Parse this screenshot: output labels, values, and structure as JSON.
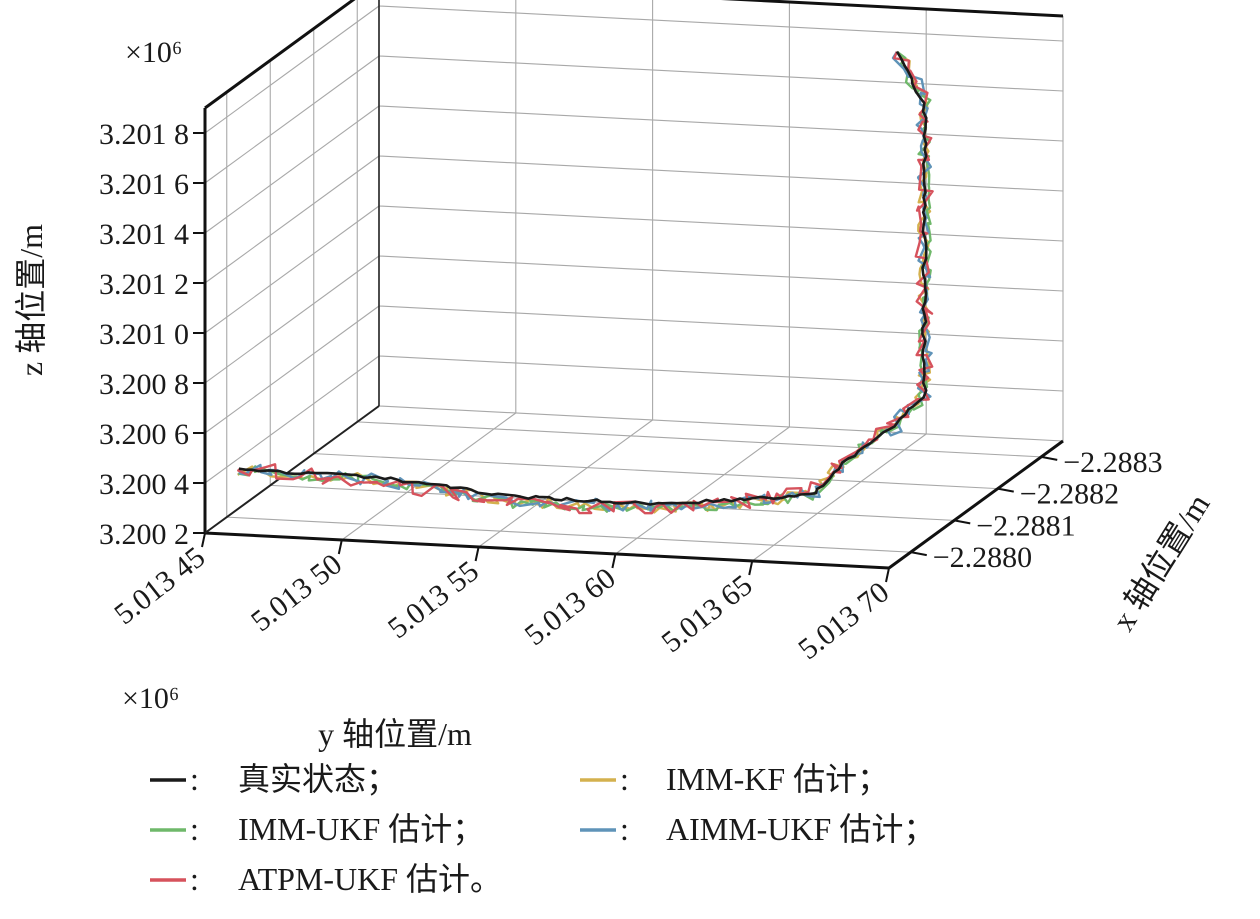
{
  "chart_data": {
    "type": "line",
    "projection": "3d",
    "title": "",
    "xlabel": "x 轴位置/m",
    "ylabel": "y 轴位置/m",
    "zlabel": "z 轴位置/m",
    "x_axis": {
      "multiplier": "",
      "ticks": [
        -2.288,
        -2.2881,
        -2.2882,
        -2.2883
      ],
      "tick_labels": [
        "−2.2880",
        "−2.2881",
        "−2.2882",
        "−2.2883"
      ],
      "range": [
        -2.28795,
        -2.28835
      ]
    },
    "y_axis": {
      "multiplier": "×10⁶",
      "ticks": [
        5.01345,
        5.0135,
        5.01355,
        5.0136,
        5.01365,
        5.0137
      ],
      "tick_labels": [
        "5.013 45",
        "5.013 50",
        "5.013 55",
        "5.013 60",
        "5.013 65",
        "5.013 70"
      ],
      "range": [
        5.01345,
        5.0137
      ]
    },
    "z_axis": {
      "multiplier": "×10⁶",
      "ticks": [
        3.2002,
        3.2004,
        3.2006,
        3.2008,
        3.201,
        3.2012,
        3.2014,
        3.2016,
        3.2018
      ],
      "tick_labels": [
        "3.200 2",
        "3.200 4",
        "3.200 6",
        "3.200 8",
        "3.201 0",
        "3.201 2",
        "3.201 4",
        "3.201 6",
        "3.201 8"
      ],
      "range": [
        3.2002,
        3.2019
      ]
    },
    "grid": true,
    "legend": {
      "placement": "bottom",
      "columns": 2,
      "separator": ":",
      "items": [
        {
          "name": "真实状态；",
          "color": "#1a1a1a"
        },
        {
          "name": "IMM-KF 估计；",
          "color": "#d4b14e"
        },
        {
          "name": "IMM-UKF 估计；",
          "color": "#6fb86a"
        },
        {
          "name": "AIMM-UKF 估计；",
          "color": "#5f93b8"
        },
        {
          "name": "ATPM-UKF 估计。",
          "color": "#d6525c"
        }
      ]
    },
    "series": [
      {
        "name": "真实状态",
        "color": "#1a1a1a",
        "jitter": 0.0,
        "points": [
          {
            "x": -2.28803,
            "y": 5.01345,
            "z": 3.20035
          },
          {
            "x": -2.28803,
            "y": 5.0135,
            "z": 3.20035
          },
          {
            "x": -2.28803,
            "y": 5.01355,
            "z": 3.2003
          },
          {
            "x": -2.28803,
            "y": 5.0136,
            "z": 3.2003
          },
          {
            "x": -2.28803,
            "y": 5.01363,
            "z": 3.20033
          },
          {
            "x": -2.28803,
            "y": 5.01366,
            "z": 3.20037
          },
          {
            "x": -2.28803,
            "y": 5.01367,
            "z": 3.2005
          },
          {
            "x": -2.28815,
            "y": 5.01367,
            "z": 3.2005
          },
          {
            "x": -2.28822,
            "y": 5.01367,
            "z": 3.20053
          },
          {
            "x": -2.28822,
            "y": 5.01367,
            "z": 3.2008
          },
          {
            "x": -2.28822,
            "y": 5.01367,
            "z": 3.2011
          },
          {
            "x": -2.28822,
            "y": 5.01367,
            "z": 3.2014
          },
          {
            "x": -2.28822,
            "y": 5.01367,
            "z": 3.2017
          },
          {
            "x": -2.28822,
            "y": 5.01366,
            "z": 3.2019
          }
        ]
      },
      {
        "name": "IMM-KF 估计",
        "color": "#d4b14e",
        "jitter": 0.55,
        "points": [
          {
            "x": -2.28803,
            "y": 5.01345,
            "z": 3.20035
          },
          {
            "x": -2.28803,
            "y": 5.0135,
            "z": 3.20034
          },
          {
            "x": -2.28803,
            "y": 5.01355,
            "z": 3.20028
          },
          {
            "x": -2.28803,
            "y": 5.0136,
            "z": 3.20028
          },
          {
            "x": -2.28803,
            "y": 5.01363,
            "z": 3.20031
          },
          {
            "x": -2.28803,
            "y": 5.01366,
            "z": 3.20037
          },
          {
            "x": -2.28803,
            "y": 5.01367,
            "z": 3.2005
          },
          {
            "x": -2.28815,
            "y": 5.01367,
            "z": 3.2005
          },
          {
            "x": -2.28822,
            "y": 5.01367,
            "z": 3.20053
          },
          {
            "x": -2.28822,
            "y": 5.01367,
            "z": 3.2008
          },
          {
            "x": -2.28822,
            "y": 5.01367,
            "z": 3.2011
          },
          {
            "x": -2.28822,
            "y": 5.01367,
            "z": 3.2014
          },
          {
            "x": -2.28822,
            "y": 5.01367,
            "z": 3.2017
          },
          {
            "x": -2.28822,
            "y": 5.01366,
            "z": 3.2019
          }
        ]
      },
      {
        "name": "IMM-UKF 估计",
        "color": "#6fb86a",
        "jitter": 0.55,
        "points": [
          {
            "x": -2.28803,
            "y": 5.01345,
            "z": 3.20035
          },
          {
            "x": -2.28803,
            "y": 5.0135,
            "z": 3.20034
          },
          {
            "x": -2.28803,
            "y": 5.01355,
            "z": 3.20027
          },
          {
            "x": -2.28803,
            "y": 5.0136,
            "z": 3.20028
          },
          {
            "x": -2.28803,
            "y": 5.01363,
            "z": 3.20031
          },
          {
            "x": -2.28803,
            "y": 5.01366,
            "z": 3.20037
          },
          {
            "x": -2.28803,
            "y": 5.01367,
            "z": 3.2005
          },
          {
            "x": -2.28815,
            "y": 5.01367,
            "z": 3.2005
          },
          {
            "x": -2.28822,
            "y": 5.01367,
            "z": 3.20053
          },
          {
            "x": -2.28822,
            "y": 5.01367,
            "z": 3.2008
          },
          {
            "x": -2.28822,
            "y": 5.01367,
            "z": 3.2011
          },
          {
            "x": -2.28822,
            "y": 5.01367,
            "z": 3.2014
          },
          {
            "x": -2.28822,
            "y": 5.01367,
            "z": 3.2017
          },
          {
            "x": -2.28822,
            "y": 5.01366,
            "z": 3.2019
          }
        ]
      },
      {
        "name": "AIMM-UKF 估计",
        "color": "#5f93b8",
        "jitter": 0.7,
        "points": [
          {
            "x": -2.28803,
            "y": 5.01345,
            "z": 3.20035
          },
          {
            "x": -2.28803,
            "y": 5.0135,
            "z": 3.20034
          },
          {
            "x": -2.28803,
            "y": 5.01355,
            "z": 3.20028
          },
          {
            "x": -2.28803,
            "y": 5.0136,
            "z": 3.20029
          },
          {
            "x": -2.28803,
            "y": 5.01363,
            "z": 3.20032
          },
          {
            "x": -2.28803,
            "y": 5.01366,
            "z": 3.20038
          },
          {
            "x": -2.28803,
            "y": 5.01367,
            "z": 3.2005
          },
          {
            "x": -2.28815,
            "y": 5.01367,
            "z": 3.2005
          },
          {
            "x": -2.28822,
            "y": 5.01367,
            "z": 3.20053
          },
          {
            "x": -2.28822,
            "y": 5.01367,
            "z": 3.2008
          },
          {
            "x": -2.28822,
            "y": 5.01367,
            "z": 3.2011
          },
          {
            "x": -2.28822,
            "y": 5.01367,
            "z": 3.2014
          },
          {
            "x": -2.28822,
            "y": 5.01367,
            "z": 3.2017
          },
          {
            "x": -2.28822,
            "y": 5.01366,
            "z": 3.2019
          }
        ]
      },
      {
        "name": "ATPM-UKF 估计",
        "color": "#d6525c",
        "jitter": 0.85,
        "points": [
          {
            "x": -2.28803,
            "y": 5.01345,
            "z": 3.20036
          },
          {
            "x": -2.28803,
            "y": 5.0135,
            "z": 3.20033
          },
          {
            "x": -2.28803,
            "y": 5.01355,
            "z": 3.20027
          },
          {
            "x": -2.28803,
            "y": 5.0136,
            "z": 3.20028
          },
          {
            "x": -2.28803,
            "y": 5.01363,
            "z": 3.20032
          },
          {
            "x": -2.28803,
            "y": 5.01366,
            "z": 3.20038
          },
          {
            "x": -2.28803,
            "y": 5.01367,
            "z": 3.2005
          },
          {
            "x": -2.28815,
            "y": 5.01367,
            "z": 3.2005
          },
          {
            "x": -2.28822,
            "y": 5.01367,
            "z": 3.20053
          },
          {
            "x": -2.28822,
            "y": 5.01367,
            "z": 3.2008
          },
          {
            "x": -2.28822,
            "y": 5.01367,
            "z": 3.2011
          },
          {
            "x": -2.28822,
            "y": 5.01367,
            "z": 3.2014
          },
          {
            "x": -2.28822,
            "y": 5.01367,
            "z": 3.2017
          },
          {
            "x": -2.28822,
            "y": 5.01366,
            "z": 3.2019
          }
        ]
      }
    ]
  }
}
